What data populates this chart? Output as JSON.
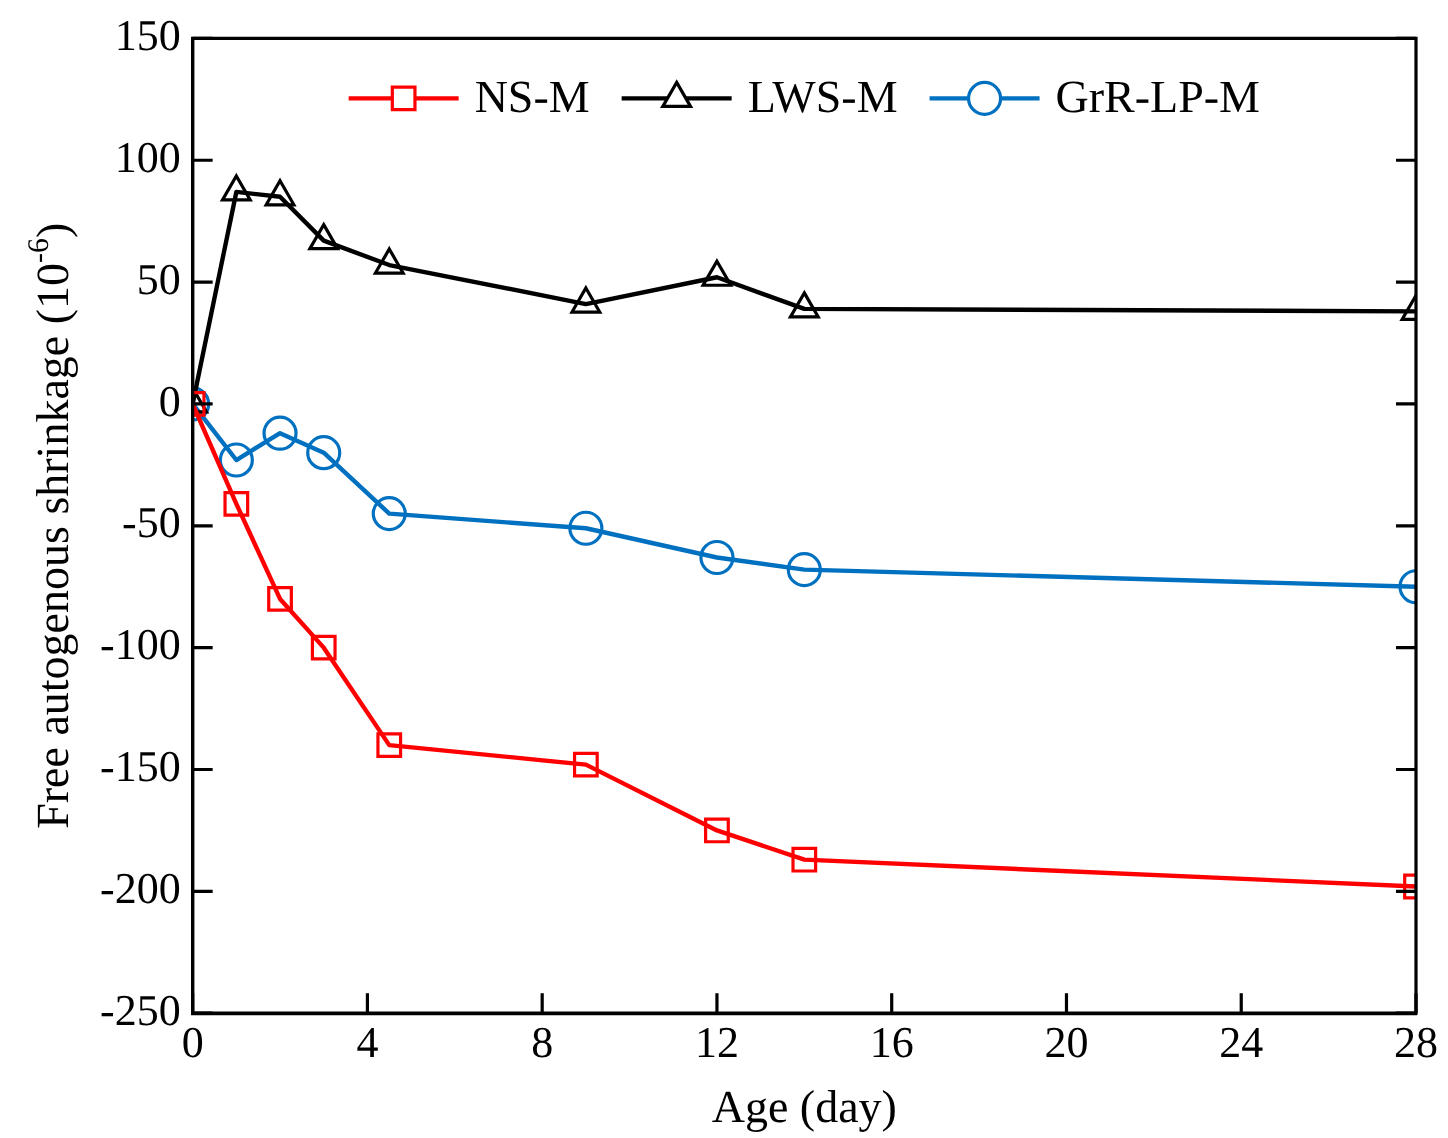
{
  "chart_data": {
    "type": "line",
    "xlabel": "Age (day)",
    "ylabel": "Free autogenous shrinkage (10$^{-6}$)",
    "xlim": [
      0,
      28
    ],
    "xticks": [
      0,
      4,
      8,
      12,
      16,
      20,
      24,
      28
    ],
    "ylim": [
      -250,
      150
    ],
    "yticks": [
      -250,
      -200,
      -150,
      -100,
      -50,
      0,
      50,
      100,
      150
    ],
    "grid": false,
    "legend": "top",
    "series": [
      {
        "name": "NS-M",
        "color": "#ff0000",
        "marker": "square",
        "x": [
          0,
          1,
          2,
          3,
          4.5,
          9,
          12,
          14,
          28
        ],
        "values": [
          0,
          -41,
          -80,
          -100,
          -140,
          -148,
          -175,
          -187,
          -198
        ]
      },
      {
        "name": "LWS-M",
        "color": "#000000",
        "marker": "triangle",
        "x": [
          0,
          1,
          2,
          3,
          4.5,
          9,
          12,
          14,
          28
        ],
        "values": [
          0,
          87,
          85,
          67,
          57,
          41,
          52,
          39,
          38
        ]
      },
      {
        "name": "GrR-LP-M",
        "color": "#0070c0",
        "marker": "circle",
        "x": [
          0,
          1,
          2,
          3,
          4.5,
          9,
          12,
          14,
          28
        ],
        "values": [
          0,
          -23,
          -12,
          -20,
          -45,
          -51,
          -63,
          -68,
          -75
        ]
      }
    ]
  }
}
